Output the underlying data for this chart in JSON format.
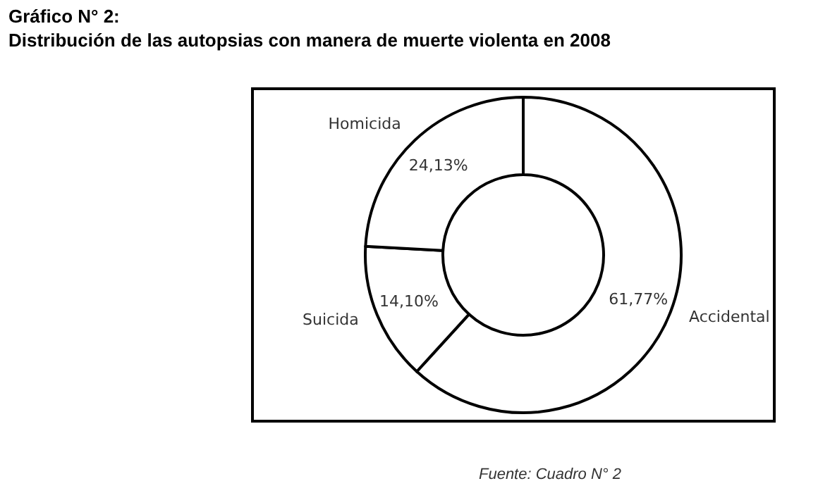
{
  "chart_data": {
    "type": "donut",
    "title": "Gráfico N° 2:",
    "subtitle": "Distribución de las autopsias con manera de muerte violenta en 2008",
    "categories": [
      "Accidental",
      "Suicida",
      "Homicida"
    ],
    "values": [
      61.77,
      14.1,
      24.13
    ],
    "value_labels": [
      "61,77%",
      "14,10%",
      "24,13%"
    ],
    "colors": [
      "#ffffff",
      "#ffffff",
      "#ffffff"
    ],
    "annotations": [
      "Fuente: Cuadro N° 2"
    ],
    "legend": false
  }
}
